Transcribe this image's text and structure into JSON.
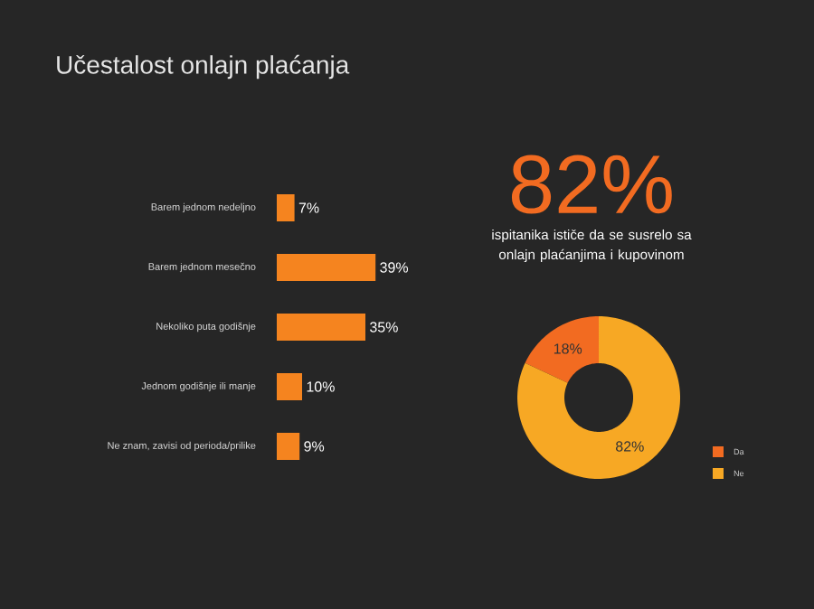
{
  "chart_data": [
    {
      "type": "bar",
      "orientation": "horizontal",
      "title": "Učestalost onlajn plaćanja",
      "categories": [
        "Barem jednom nedeljno",
        "Barem jednom mesečno",
        "Nekoliko puta godišnje",
        "Jednom godišnje ili manje",
        "Ne znam, zavisi od perioda/prilike"
      ],
      "values": [
        7,
        39,
        35,
        10,
        9
      ],
      "value_labels": [
        "7%",
        "39%",
        "35%",
        "10%",
        "9%"
      ],
      "color": "#f5841f"
    },
    {
      "type": "donut",
      "title": "82%",
      "subtitle": "ispitanika ističe da se susrelo sa onlajn plaćanjima i kupovinom",
      "categories": [
        "Da",
        "Ne"
      ],
      "values": [
        18,
        82
      ],
      "value_labels": [
        "18%",
        "82%"
      ],
      "colors": [
        "#f26b21",
        "#f7a824"
      ],
      "legend": "bottom right"
    }
  ]
}
